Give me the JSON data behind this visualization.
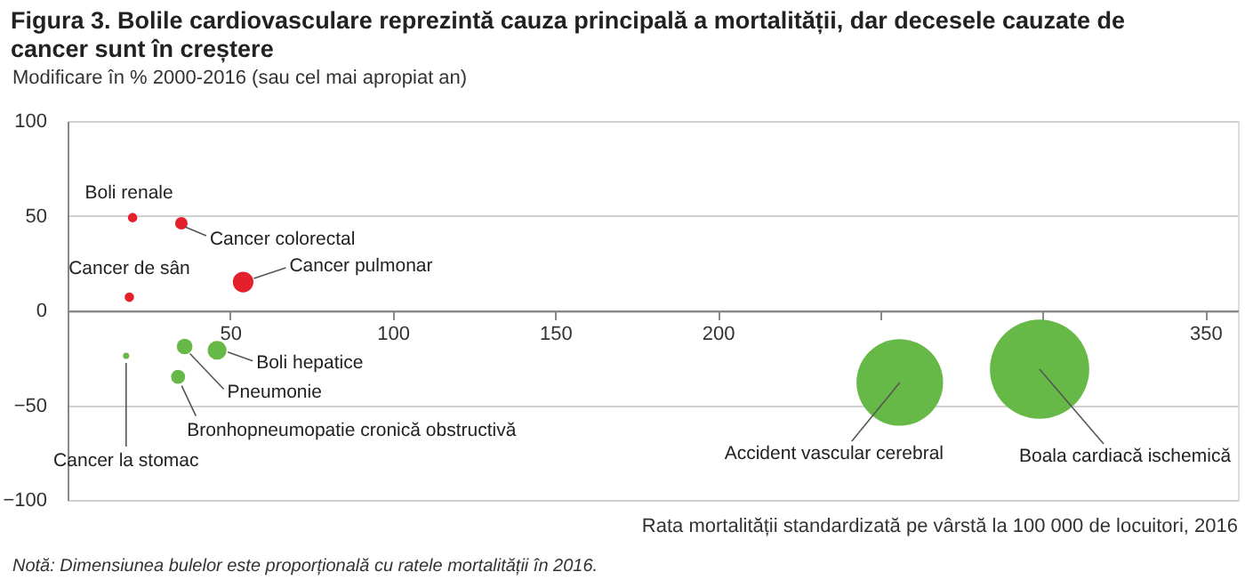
{
  "chart_data": {
    "type": "bubble",
    "title": "Figura 3. Bolile cardiovasculare reprezintă cauza principală a mortalității, dar decesele cauzate de cancer sunt în creștere",
    "ylabel": "Modificare în % 2000-2016 (sau cel mai apropiat an)",
    "xlabel": "Rata mortalității standardizată pe vârstă la 100 000 de locuitori, 2016",
    "x": [
      20,
      35,
      19,
      54,
      18,
      36,
      46,
      34,
      256,
      299
    ],
    "values": [
      49,
      46,
      7,
      15,
      -24,
      -19,
      -21,
      -35,
      -38,
      -31
    ],
    "sizes": [
      0.009,
      0.016,
      0.009,
      0.043,
      0.004,
      0.025,
      0.036,
      0.02,
      0.76,
      1
    ],
    "colors": [
      "#e3202b",
      "#e3202b",
      "#e3202b",
      "#e3202b",
      "#66b946",
      "#66b946",
      "#66b946",
      "#66b946",
      "#66b946",
      "#66b946"
    ],
    "xlim": [
      0,
      360
    ],
    "xticks": [
      50,
      100,
      150,
      200,
      {
        "value": 250,
        "label": null
      },
      {
        "value": 300,
        "label": null
      },
      350
    ],
    "ylim": [
      -100,
      100
    ],
    "yticks": [
      -100,
      -50,
      0,
      50,
      100
    ],
    "grid": "y",
    "annotations": [
      {
        "text": "Boli renale",
        "x": 20,
        "y": 49
      },
      {
        "text": "Cancer colorectal",
        "x": 35,
        "y": 46
      },
      {
        "text": "Cancer de sân",
        "x": 19,
        "y": 7
      },
      {
        "text": "Cancer pulmonar",
        "x": 54,
        "y": 15
      },
      {
        "text": "Cancer la stomac",
        "x": 18,
        "y": -24
      },
      {
        "text": "Pneumonie",
        "x": 36,
        "y": -19
      },
      {
        "text": "Boli hepatice",
        "x": 46,
        "y": -21
      },
      {
        "text": "Bronhopneumopatie cronică obstructivă",
        "x": 34,
        "y": -35
      },
      {
        "text": "Accident vascular cerebral",
        "x": 256,
        "y": -38
      },
      {
        "text": "Boala cardiacă ischemică",
        "x": 299,
        "y": -31
      },
      "Notă: Dimensiunea bulelor este proporțională cu ratele mortalității în 2016."
    ]
  }
}
